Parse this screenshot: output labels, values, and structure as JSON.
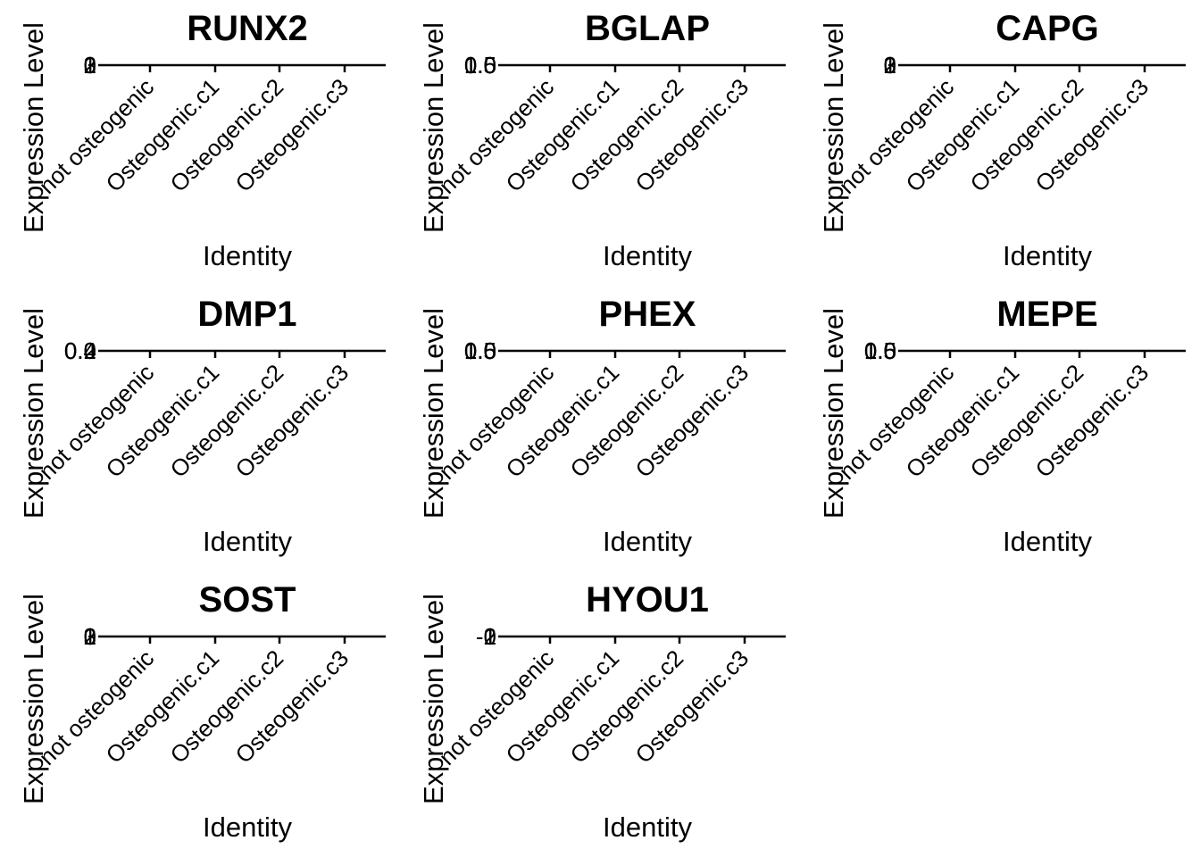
{
  "chart_data": [
    {
      "type": "violin",
      "title": "RUNX2",
      "xlabel": "Identity",
      "ylabel": "Expression Level",
      "categories": [
        "not osteogenic",
        "Osteogenic.c1",
        "Osteogenic.c2",
        "Osteogenic.c3"
      ],
      "yticks": [
        "0",
        "1",
        "2",
        "3"
      ],
      "values": []
    },
    {
      "type": "violin",
      "title": "BGLAP",
      "xlabel": "Identity",
      "ylabel": "Expression Level",
      "categories": [
        "not osteogenic",
        "Osteogenic.c1",
        "Osteogenic.c2",
        "Osteogenic.c3"
      ],
      "yticks": [
        "0.0",
        "0.5",
        "1.0",
        "1.5"
      ],
      "values": []
    },
    {
      "type": "violin",
      "title": "CAPG",
      "xlabel": "Identity",
      "ylabel": "Expression Level",
      "categories": [
        "not osteogenic",
        "Osteogenic.c1",
        "Osteogenic.c2",
        "Osteogenic.c3"
      ],
      "yticks": [
        "0",
        "1",
        "2",
        "3"
      ],
      "values": []
    },
    {
      "type": "violin",
      "title": "DMP1",
      "xlabel": "Identity",
      "ylabel": "Expression Level",
      "categories": [
        "not osteogenic",
        "Osteogenic.c1",
        "Osteogenic.c2",
        "Osteogenic.c3"
      ],
      "yticks": [
        "0.0",
        "0.2",
        "0.4"
      ],
      "values": []
    },
    {
      "type": "violin",
      "title": "PHEX",
      "xlabel": "Identity",
      "ylabel": "Expression Level",
      "categories": [
        "not osteogenic",
        "Osteogenic.c1",
        "Osteogenic.c2",
        "Osteogenic.c3"
      ],
      "yticks": [
        "0.0",
        "0.5",
        "1.0",
        "1.5"
      ],
      "values": []
    },
    {
      "type": "violin",
      "title": "MEPE",
      "xlabel": "Identity",
      "ylabel": "Expression Level",
      "categories": [
        "not osteogenic",
        "Osteogenic.c1",
        "Osteogenic.c2",
        "Osteogenic.c3"
      ],
      "yticks": [
        "0.0",
        "0.5",
        "1.0",
        "1.5"
      ],
      "values": []
    },
    {
      "type": "violin",
      "title": "SOST",
      "xlabel": "Identity",
      "ylabel": "Expression Level",
      "categories": [
        "not osteogenic",
        "Osteogenic.c1",
        "Osteogenic.c2",
        "Osteogenic.c3"
      ],
      "yticks": [
        "0",
        "1",
        "2",
        "3"
      ],
      "values": []
    },
    {
      "type": "violin",
      "title": "HYOU1",
      "xlabel": "Identity",
      "ylabel": "Expression Level",
      "categories": [
        "not osteogenic",
        "Osteogenic.c1",
        "Osteogenic.c2",
        "Osteogenic.c3"
      ],
      "yticks": [
        "-1",
        "0",
        "1",
        "2"
      ],
      "values": []
    }
  ]
}
